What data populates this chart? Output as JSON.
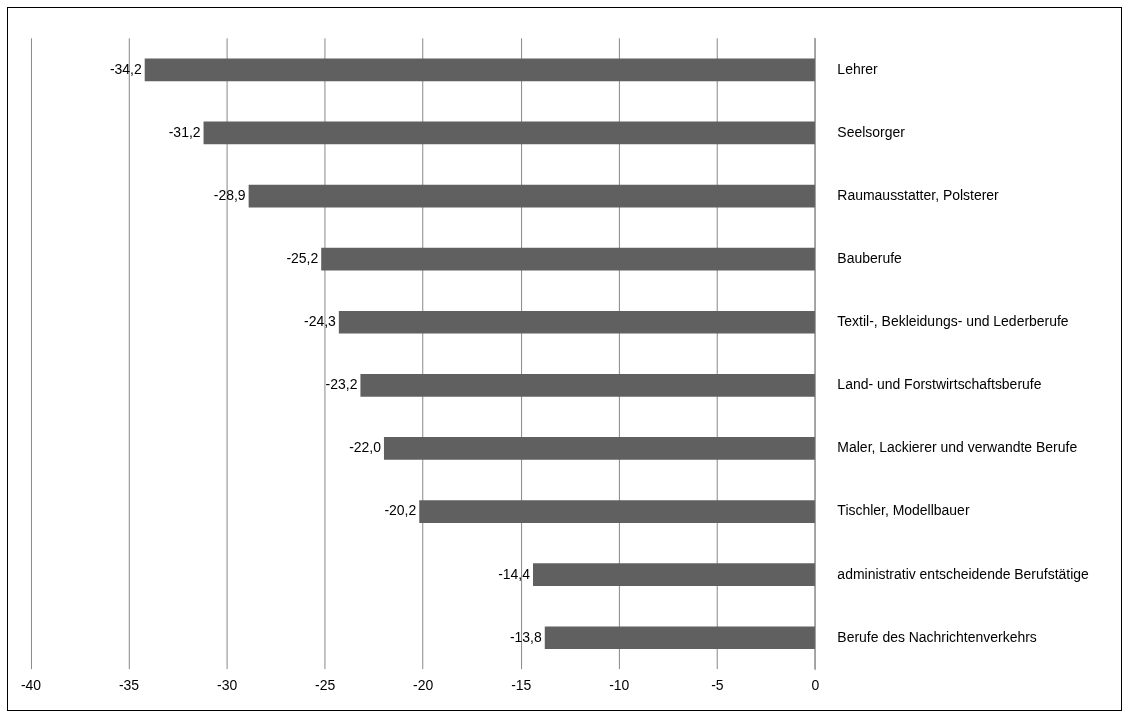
{
  "chart_data": {
    "type": "bar",
    "orientation": "horizontal",
    "categories": [
      "Lehrer",
      "Seelsorger",
      "Raumausstatter, Polsterer",
      "Bauberufe",
      "Textil-, Bekleidungs- und Lederberufe",
      "Land- und Forstwirtschaftsberufe",
      "Maler, Lackierer und verwandte Berufe",
      "Tischler, Modellbauer",
      "administrativ entscheidende Berufstätige",
      "Berufe des Nachrichtenverkehrs"
    ],
    "values": [
      -34.2,
      -31.2,
      -28.9,
      -25.2,
      -24.3,
      -23.2,
      -22.0,
      -20.2,
      -14.4,
      -13.8
    ],
    "value_labels": [
      "-34,2",
      "-31,2",
      "-28,9",
      "-25,2",
      "-24,3",
      "-23,2",
      "-22,0",
      "-20,2",
      "-14,4",
      "-13,8"
    ],
    "color": "#606060",
    "xlim": [
      -40,
      0
    ],
    "xticks": [
      -40,
      -35,
      -30,
      -25,
      -20,
      -15,
      -10,
      -5,
      0
    ],
    "grid": "x",
    "legend": false
  }
}
